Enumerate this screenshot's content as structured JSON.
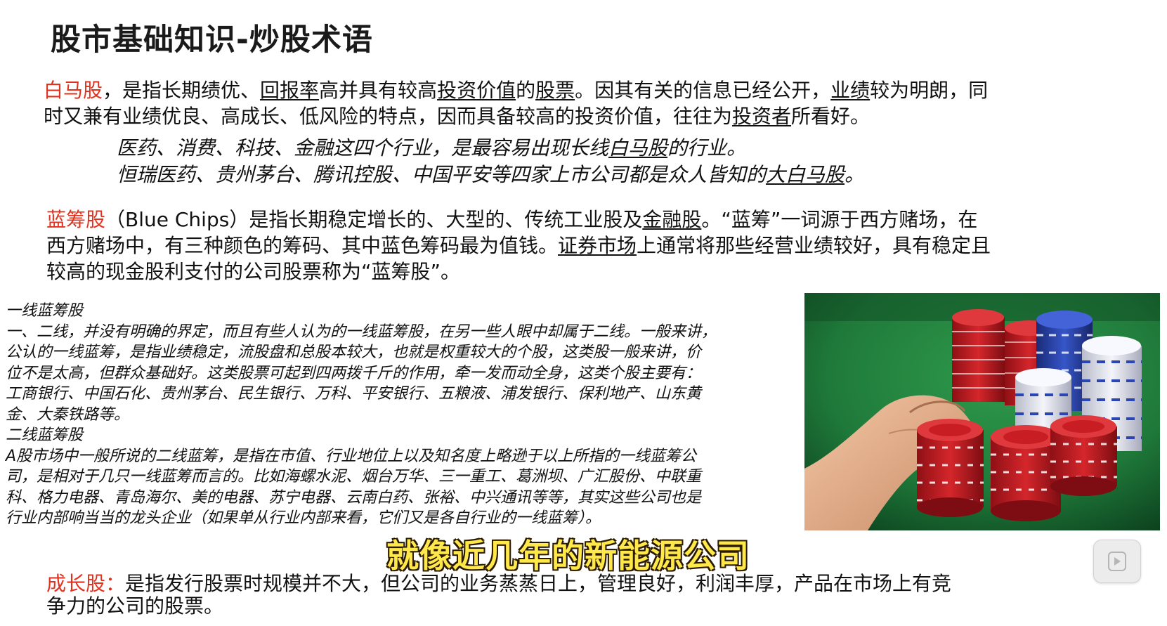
{
  "title": "股市基础知识-炒股术语",
  "baima": {
    "term": "白马股",
    "t1": "，是指长期绩优、",
    "u1": "回报率",
    "t2": "高并具有较高",
    "u2": "投资价值",
    "t3": "的",
    "u3": "股票",
    "t4": "。因其有关的信息已经公开，",
    "u4": "业绩",
    "t5": "较为明朗，同",
    "t6": "时又兼有业绩优良、高成长、低风险的特点，因而具备较高的投资价值，往往为",
    "u5": "投资者",
    "t7": "所看好。"
  },
  "baima_notes": {
    "n1a": "医药、消费、科技、金融这四个行业，是最容易出现长线",
    "n1u": "白马股",
    "n1b": "的行业。",
    "n2a": "恒瑞医药、贵州茅台、腾讯控股、中国平安等四家上市公司都是众人皆知的",
    "n2u": "大白马股",
    "n2b": "。"
  },
  "lanchou": {
    "term": "蓝筹股",
    "t1": "（Blue Chips）是指长期稳定增长的、大型的、传统工业股及",
    "u1": "金融股",
    "t2": "。“蓝筹”一词源于西方赌场，在",
    "t3": "西方赌场中，有三种颜色的筹码、其中蓝色筹码最为值钱。",
    "u2": "证券市场",
    "t4": "上通常将那些经营业绩较好，具有稳定且",
    "t5": "较高的现金股利支付的公司股票称为“蓝筹股”。"
  },
  "detail": {
    "l1": "一线蓝筹股",
    "l2": "一、二线，并没有明确的界定，而且有些人认为的一线蓝筹股，在另一些人眼中却属于二线。一般来讲，",
    "l3": "公认的一线蓝筹，是指业绩稳定，流股盘和总股本较大，也就是权重较大的个股，这类股一般来讲，价",
    "l4": "位不是太高，但群众基础好。这类股票可起到四两拨千斤的作用，牵一发而动全身，这类个股主要有：",
    "l5": "工商银行、中国石化、贵州茅台、民生银行、万科、平安银行、五粮液、浦发银行、保利地产、山东黄",
    "l6": "金、大秦铁路等。",
    "l7": "二线蓝筹股",
    "l8": "A股市场中一般所说的二线蓝筹，是指在市值、行业地位上以及知名度上略逊于以上所指的一线蓝筹公",
    "l9": "司，是相对于几只一线蓝筹而言的。比如海螺水泥、烟台万华、三一重工、葛洲坝、广汇股份、中联重",
    "l10": "科、格力电器、青岛海尔、美的电器、苏宁电器、云南白药、张裕、中兴通讯等等，其实这些公司也是",
    "l11": "行业内部响当当的龙头企业（如果单从行业内部来看，它们又是各自行业的一线蓝筹）。"
  },
  "caption": "就像近几年的新能源公司",
  "chengzhang": {
    "term": "成长股：",
    "t1": "是指发行股票时规模并不大，但公司的业务蒸蒸日上，管理良好，利润丰厚，产品在市场上有竞",
    "t2": "争力的公司的股票。"
  },
  "colors": {
    "term_red": "#e0321e",
    "caption_yellow": "#ffe94a",
    "felt_green": "#1f7a3a",
    "chip_red": "#c81e23",
    "chip_blue": "#2b46b0"
  },
  "icons": {
    "play": "play-icon"
  }
}
